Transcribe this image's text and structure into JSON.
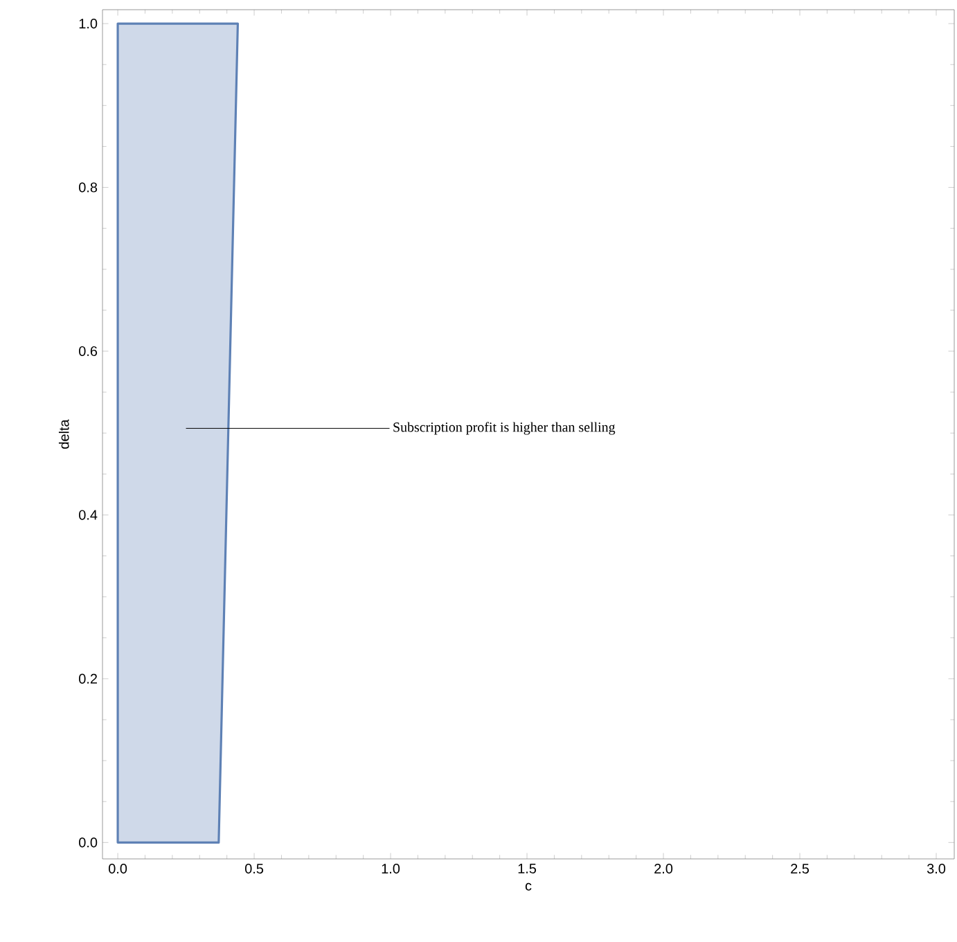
{
  "chart_data": {
    "type": "area",
    "xlabel": "c",
    "ylabel": "delta",
    "series": [
      {
        "color": "#5e81b5",
        "x": [
          0,
          0.37,
          0.44,
          0
        ],
        "values": [
          0,
          0,
          1,
          1
        ]
      }
    ],
    "xlim": [
      -0.056,
      3.066
    ],
    "ylim": [
      -0.02,
      1.017
    ],
    "xticks": [
      {
        "value": 0,
        "label": "0.0"
      },
      0.5,
      {
        "value": 1,
        "label": "1.0"
      },
      1.5,
      {
        "value": 2,
        "label": "2.0"
      },
      2.5,
      {
        "value": 3,
        "label": "3.0"
      }
    ],
    "yticks": [
      {
        "value": 0,
        "label": "0.0"
      },
      0.2,
      0.4,
      0.6,
      0.8,
      {
        "value": 1,
        "label": "1.0"
      }
    ],
    "grid": false,
    "annotations": [
      "Subscription profit is higher than selling"
    ]
  }
}
